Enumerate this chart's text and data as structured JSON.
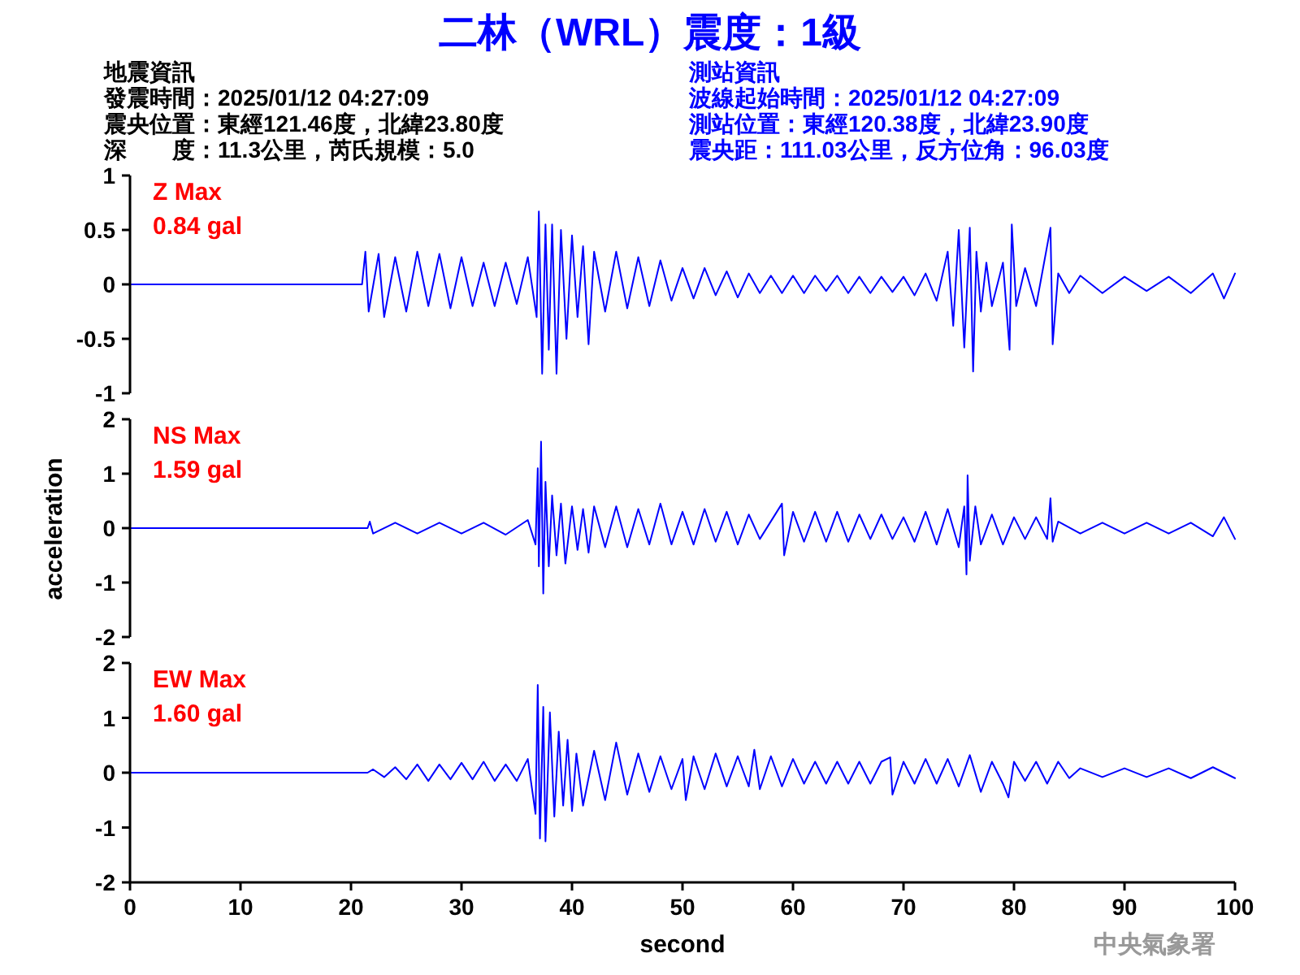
{
  "chart_data": [
    {
      "type": "line",
      "title": "二林（WRL）震度：1級",
      "annotations": [
        "Z Max",
        "0.84 gal",
        "地震資訊",
        "發震時間：2025/01/12 04:27:09",
        "震央位置：東經121.46度，北緯23.80度",
        "深　　度：11.3公里，芮氏規模：5.0",
        "測站資訊",
        "波線起始時間：2025/01/12 04:27:09",
        "測站位置：東經120.38度，北緯23.90度",
        "震央距：111.03公里，反方位角：96.03度"
      ],
      "x": [
        0,
        21,
        21.3,
        21.6,
        22.5,
        23,
        24,
        25,
        26,
        27,
        28,
        29,
        30,
        31,
        32,
        33,
        34,
        35,
        36,
        36.8,
        37.0,
        37.3,
        37.6,
        37.9,
        38.2,
        38.6,
        39,
        39.5,
        40,
        40.5,
        41,
        41.5,
        42,
        43,
        44,
        45,
        46,
        47,
        48,
        49,
        50,
        51,
        52,
        53,
        54,
        55,
        56,
        57,
        58,
        59,
        60,
        61,
        62,
        63,
        64,
        65,
        66,
        67,
        68,
        69,
        70,
        71,
        72,
        73,
        74,
        74.5,
        75,
        75.5,
        76,
        76.3,
        76.6,
        77,
        77.5,
        78,
        79,
        79.6,
        79.8,
        80.2,
        81,
        82,
        83.3,
        83.5,
        84,
        85,
        86,
        88,
        90,
        92,
        94,
        96,
        98,
        99,
        100
      ],
      "series": [
        {
          "color": "#0000ff",
          "values": [
            0,
            0,
            0.3,
            -0.25,
            0.28,
            -0.3,
            0.25,
            -0.25,
            0.3,
            -0.2,
            0.28,
            -0.22,
            0.25,
            -0.2,
            0.2,
            -0.2,
            0.2,
            -0.18,
            0.25,
            -0.3,
            0.67,
            -0.82,
            0.55,
            -0.6,
            0.55,
            -0.82,
            0.5,
            -0.5,
            0.45,
            -0.3,
            0.35,
            -0.55,
            0.3,
            -0.25,
            0.3,
            -0.22,
            0.25,
            -0.2,
            0.22,
            -0.15,
            0.15,
            -0.13,
            0.15,
            -0.1,
            0.12,
            -0.12,
            0.1,
            -0.08,
            0.08,
            -0.08,
            0.08,
            -0.08,
            0.08,
            -0.06,
            0.08,
            -0.08,
            0.07,
            -0.08,
            0.07,
            -0.07,
            0.07,
            -0.1,
            0.1,
            -0.15,
            0.3,
            -0.38,
            0.5,
            -0.58,
            0.52,
            -0.8,
            0.3,
            -0.25,
            0.2,
            -0.2,
            0.2,
            -0.6,
            0.55,
            -0.2,
            0.15,
            -0.2,
            0.52,
            -0.55,
            0.1,
            -0.08,
            0.08,
            -0.08,
            0.07,
            -0.06,
            0.07,
            -0.08,
            0.1,
            -0.13,
            0.1
          ]
        }
      ],
      "xlim": [
        0,
        100
      ],
      "ylim": [
        -1,
        1
      ],
      "yticks": [
        -1,
        -0.5,
        0,
        0.5,
        1
      ],
      "tick_labels": "y"
    },
    {
      "type": "line",
      "ylabel": "acceleration",
      "annotations": [
        "NS Max",
        "1.59 gal"
      ],
      "x": [
        0,
        21.5,
        21.7,
        22,
        24,
        26,
        28,
        30,
        32,
        34,
        36,
        36.7,
        36.9,
        37.0,
        37.2,
        37.4,
        37.6,
        37.9,
        38.2,
        38.6,
        39,
        39.4,
        40,
        40.5,
        41,
        41.5,
        42,
        43,
        44,
        45,
        46,
        47,
        48,
        49,
        50,
        51,
        52,
        53,
        54,
        55,
        56,
        57,
        59,
        59.2,
        60,
        61,
        62,
        63,
        64,
        65,
        66,
        67,
        68,
        69,
        70,
        71,
        72,
        73,
        74,
        75,
        75.5,
        75.7,
        75.8,
        76,
        76.5,
        77,
        78,
        79,
        80,
        81,
        82,
        83,
        83.3,
        83.5,
        84,
        86,
        88,
        90,
        92,
        94,
        96,
        98,
        99,
        100
      ],
      "series": [
        {
          "color": "#0000ff",
          "values": [
            0,
            0,
            0.12,
            -0.1,
            0.1,
            -0.1,
            0.1,
            -0.1,
            0.1,
            -0.12,
            0.15,
            -0.3,
            1.1,
            -0.7,
            1.59,
            -1.2,
            0.85,
            -0.7,
            0.6,
            -0.5,
            0.45,
            -0.65,
            0.4,
            -0.4,
            0.35,
            -0.45,
            0.4,
            -0.35,
            0.4,
            -0.35,
            0.35,
            -0.3,
            0.45,
            -0.3,
            0.3,
            -0.3,
            0.35,
            -0.25,
            0.3,
            -0.3,
            0.25,
            -0.2,
            0.45,
            -0.5,
            0.3,
            -0.25,
            0.3,
            -0.25,
            0.3,
            -0.25,
            0.25,
            -0.2,
            0.25,
            -0.2,
            0.2,
            -0.25,
            0.3,
            -0.3,
            0.35,
            -0.35,
            0.4,
            -0.85,
            0.97,
            -0.6,
            0.4,
            -0.3,
            0.25,
            -0.3,
            0.2,
            -0.2,
            0.2,
            -0.2,
            0.55,
            -0.25,
            0.12,
            -0.1,
            0.1,
            -0.1,
            0.1,
            -0.1,
            0.1,
            -0.15,
            0.2,
            -0.2
          ]
        }
      ],
      "xlim": [
        0,
        100
      ],
      "ylim": [
        -2,
        2
      ],
      "yticks": [
        -2,
        -1,
        0,
        1,
        2
      ],
      "tick_labels": "y"
    },
    {
      "type": "line",
      "xlabel": "second",
      "annotations": [
        "EW Max",
        "1.60 gal",
        "中央氣象署"
      ],
      "x": [
        0,
        21.5,
        22,
        23,
        24,
        25,
        26,
        27,
        28,
        29,
        30,
        31,
        32,
        33,
        34,
        35,
        36,
        36.7,
        36.9,
        37.1,
        37.4,
        37.6,
        38,
        38.4,
        38.8,
        39.2,
        39.6,
        40,
        40.4,
        41,
        42,
        43,
        44,
        45,
        46,
        47,
        48,
        49,
        50,
        50.3,
        51,
        52,
        53,
        54,
        55,
        56,
        56.5,
        57,
        58,
        59,
        60,
        61,
        62,
        63,
        64,
        65,
        66,
        67,
        68,
        68.8,
        69,
        70,
        71,
        72,
        73,
        74,
        75,
        76,
        77,
        78,
        79,
        79.5,
        80,
        81,
        82,
        83,
        84,
        85,
        86,
        88,
        90,
        92,
        94,
        96,
        98,
        100
      ],
      "series": [
        {
          "color": "#0000ff",
          "values": [
            0,
            0,
            0.06,
            -0.08,
            0.1,
            -0.12,
            0.15,
            -0.15,
            0.15,
            -0.12,
            0.18,
            -0.12,
            0.2,
            -0.15,
            0.15,
            -0.15,
            0.25,
            -0.75,
            1.6,
            -1.2,
            1.2,
            -1.25,
            1.1,
            -0.8,
            0.75,
            -0.6,
            0.6,
            -0.7,
            0.35,
            -0.6,
            0.4,
            -0.5,
            0.55,
            -0.4,
            0.35,
            -0.35,
            0.3,
            -0.3,
            0.25,
            -0.5,
            0.3,
            -0.3,
            0.35,
            -0.25,
            0.3,
            -0.25,
            0.42,
            -0.3,
            0.3,
            -0.25,
            0.25,
            -0.2,
            0.2,
            -0.2,
            0.2,
            -0.2,
            0.2,
            -0.2,
            0.2,
            0.28,
            -0.4,
            0.2,
            -0.2,
            0.25,
            -0.2,
            0.25,
            -0.25,
            0.32,
            -0.35,
            0.2,
            -0.2,
            -0.45,
            0.2,
            -0.15,
            0.2,
            -0.2,
            0.2,
            -0.1,
            0.08,
            -0.08,
            0.08,
            -0.08,
            0.08,
            -0.1,
            0.1,
            -0.1
          ]
        }
      ],
      "xlim": [
        0,
        100
      ],
      "xticks": [
        0,
        10,
        20,
        30,
        40,
        50,
        60,
        70,
        80,
        90,
        100
      ],
      "ylim": [
        -2,
        2
      ],
      "yticks": [
        -2,
        -1,
        0,
        1,
        2
      ]
    }
  ]
}
